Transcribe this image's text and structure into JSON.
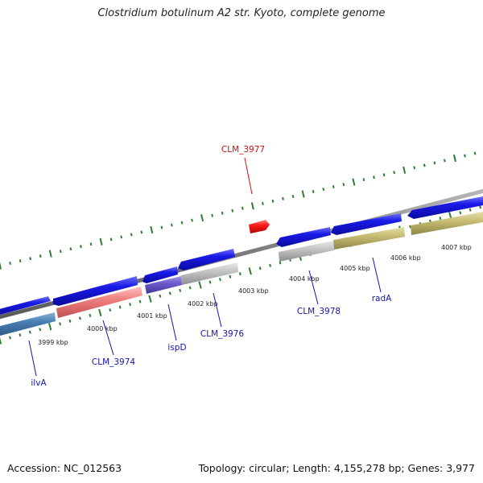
{
  "title": "Clostridium botulinum A2 str. Kyoto, complete genome",
  "footer": {
    "accession": "Accession: NC_012563",
    "summary": "Topology: circular; Length: 4,155,278 bp; Genes: 3,977"
  },
  "colors": {
    "backbone": "#8a8a8a",
    "ticks": "#2e7d32",
    "forward_cds": "#1a1ae6",
    "reverse_highlight": "#ff1a1a",
    "label_blue": "#1414b4",
    "label_red": "#d01010"
  },
  "scale_labels": [
    "3999 kbp",
    "4000 kbp",
    "4001 kbp",
    "4002 kbp",
    "4003 kbp",
    "4004 kbp",
    "4005 kbp",
    "4006 kbp",
    "4007 kbp"
  ],
  "genes": [
    {
      "name": "ilvA",
      "color": "blue"
    },
    {
      "name": "CLM_3974",
      "color": "blue"
    },
    {
      "name": "ispD",
      "color": "blue"
    },
    {
      "name": "CLM_3976",
      "color": "blue"
    },
    {
      "name": "CLM_3977",
      "color": "red"
    },
    {
      "name": "CLM_3978",
      "color": "blue"
    },
    {
      "name": "radA",
      "color": "blue"
    }
  ]
}
